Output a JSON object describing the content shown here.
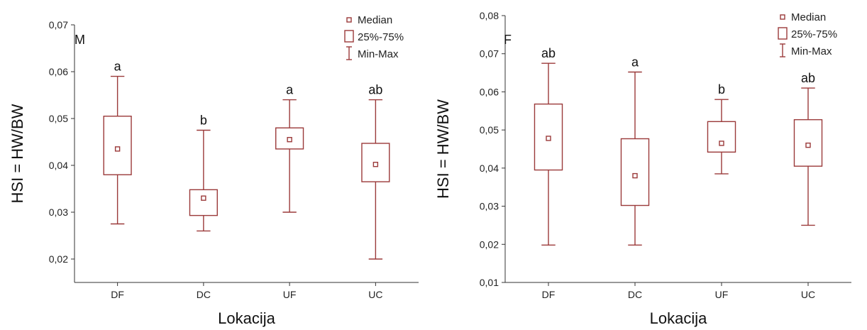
{
  "chart_data": [
    {
      "type": "box",
      "panel_label": "M",
      "xlabel": "Lokacija",
      "ylabel": "HSI = HW/BW",
      "ylim": [
        0.015,
        0.07
      ],
      "yticks": [
        "0,02",
        "0,03",
        "0,04",
        "0,05",
        "0,06",
        "0,07"
      ],
      "ytick_values": [
        0.02,
        0.03,
        0.04,
        0.05,
        0.06,
        0.07
      ],
      "categories": [
        "DF",
        "DC",
        "UF",
        "UC"
      ],
      "median": [
        0.0435,
        0.033,
        0.0455,
        0.0402
      ],
      "q1": [
        0.038,
        0.0293,
        0.0435,
        0.0365
      ],
      "q3": [
        0.0505,
        0.0348,
        0.048,
        0.0447
      ],
      "min": [
        0.0275,
        0.026,
        0.03,
        0.02
      ],
      "max": [
        0.059,
        0.0475,
        0.054,
        0.054
      ],
      "significance": [
        "a",
        "b",
        "a",
        "ab"
      ],
      "legend": {
        "median": "Median",
        "box": "25%-75%",
        "whisker": "Min-Max"
      },
      "legend_position": "top-right"
    },
    {
      "type": "box",
      "panel_label": "F",
      "xlabel": "Lokacija",
      "ylabel": "HSI = HW/BW",
      "ylim": [
        0.01,
        0.08
      ],
      "yticks": [
        "0,01",
        "0,02",
        "0,03",
        "0,04",
        "0,05",
        "0,06",
        "0,07",
        "0,08"
      ],
      "ytick_values": [
        0.01,
        0.02,
        0.03,
        0.04,
        0.05,
        0.06,
        0.07,
        0.08
      ],
      "categories": [
        "DF",
        "DC",
        "UF",
        "UC"
      ],
      "median": [
        0.0478,
        0.038,
        0.0465,
        0.046
      ],
      "q1": [
        0.0395,
        0.0302,
        0.0442,
        0.0405
      ],
      "q3": [
        0.0568,
        0.0477,
        0.0522,
        0.0527
      ],
      "min": [
        0.0198,
        0.0198,
        0.0385,
        0.025
      ],
      "max": [
        0.0675,
        0.0652,
        0.058,
        0.061
      ],
      "significance": [
        "ab",
        "a",
        "b",
        "ab"
      ],
      "legend": {
        "median": "Median",
        "box": "25%-75%",
        "whisker": "Min-Max"
      },
      "legend_position": "top-right"
    }
  ],
  "colors": {
    "box_stroke": "#9b3a3a",
    "axis": "#333333"
  }
}
